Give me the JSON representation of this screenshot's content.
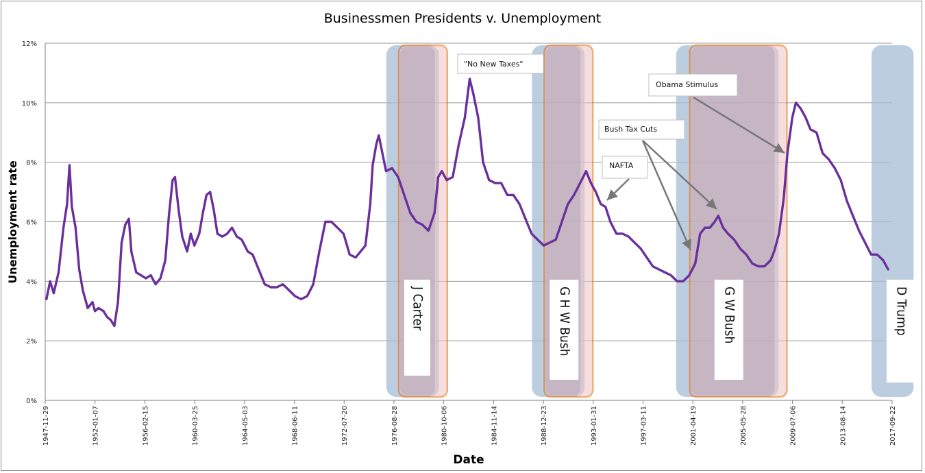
{
  "chart_data": {
    "type": "line",
    "title": "Businessmen Presidents v. Unemployment",
    "xlabel": "Date",
    "ylabel": "Unemployment rate",
    "ylim": [
      0,
      12
    ],
    "y_ticks": [
      "0%",
      "2%",
      "4%",
      "6%",
      "8%",
      "10%",
      "12%"
    ],
    "x_ticks": [
      "1947-11-29",
      "1952-01-07",
      "1956-02-15",
      "1960-03-25",
      "1964-05-03",
      "1968-06-11",
      "1972-07-20",
      "1976-08-28",
      "1980-10-06",
      "1984-11-14",
      "1988-12-23",
      "1993-01-31",
      "1997-03-11",
      "2001-04-19",
      "2005-05-28",
      "2009-07-06",
      "2013-08-14",
      "2017-09-22"
    ],
    "grid": true,
    "series": [
      {
        "color": "#6a2f9c",
        "points": [
          [
            1948.0,
            3.4
          ],
          [
            1948.3,
            4.0
          ],
          [
            1948.6,
            3.6
          ],
          [
            1949.0,
            4.3
          ],
          [
            1949.4,
            5.8
          ],
          [
            1949.7,
            6.6
          ],
          [
            1949.9,
            7.9
          ],
          [
            1950.1,
            6.5
          ],
          [
            1950.4,
            5.8
          ],
          [
            1950.7,
            4.4
          ],
          [
            1951.0,
            3.7
          ],
          [
            1951.4,
            3.1
          ],
          [
            1951.8,
            3.3
          ],
          [
            1952.0,
            3.0
          ],
          [
            1952.3,
            3.1
          ],
          [
            1952.7,
            3.0
          ],
          [
            1953.0,
            2.8
          ],
          [
            1953.3,
            2.7
          ],
          [
            1953.6,
            2.5
          ],
          [
            1953.9,
            3.3
          ],
          [
            1954.2,
            5.3
          ],
          [
            1954.5,
            5.9
          ],
          [
            1954.8,
            6.1
          ],
          [
            1955.0,
            5.0
          ],
          [
            1955.4,
            4.3
          ],
          [
            1955.8,
            4.2
          ],
          [
            1956.2,
            4.1
          ],
          [
            1956.6,
            4.2
          ],
          [
            1957.0,
            3.9
          ],
          [
            1957.4,
            4.1
          ],
          [
            1957.8,
            4.7
          ],
          [
            1958.1,
            6.2
          ],
          [
            1958.4,
            7.4
          ],
          [
            1958.6,
            7.5
          ],
          [
            1958.9,
            6.4
          ],
          [
            1959.2,
            5.5
          ],
          [
            1959.6,
            5.0
          ],
          [
            1959.9,
            5.6
          ],
          [
            1960.2,
            5.2
          ],
          [
            1960.6,
            5.6
          ],
          [
            1960.9,
            6.3
          ],
          [
            1961.2,
            6.9
          ],
          [
            1961.5,
            7.0
          ],
          [
            1961.8,
            6.4
          ],
          [
            1962.1,
            5.6
          ],
          [
            1962.5,
            5.5
          ],
          [
            1962.9,
            5.6
          ],
          [
            1963.3,
            5.8
          ],
          [
            1963.7,
            5.5
          ],
          [
            1964.1,
            5.4
          ],
          [
            1964.6,
            5.0
          ],
          [
            1965.0,
            4.9
          ],
          [
            1965.5,
            4.4
          ],
          [
            1966.0,
            3.9
          ],
          [
            1966.5,
            3.8
          ],
          [
            1967.0,
            3.8
          ],
          [
            1967.5,
            3.9
          ],
          [
            1968.0,
            3.7
          ],
          [
            1968.5,
            3.5
          ],
          [
            1969.0,
            3.4
          ],
          [
            1969.5,
            3.5
          ],
          [
            1970.0,
            3.9
          ],
          [
            1970.5,
            5.0
          ],
          [
            1971.0,
            6.0
          ],
          [
            1971.5,
            6.0
          ],
          [
            1972.0,
            5.8
          ],
          [
            1972.5,
            5.6
          ],
          [
            1973.0,
            4.9
          ],
          [
            1973.5,
            4.8
          ],
          [
            1973.9,
            5.0
          ],
          [
            1974.3,
            5.2
          ],
          [
            1974.7,
            6.6
          ],
          [
            1974.9,
            7.9
          ],
          [
            1975.2,
            8.6
          ],
          [
            1975.4,
            8.9
          ],
          [
            1975.7,
            8.3
          ],
          [
            1976.0,
            7.7
          ],
          [
            1976.5,
            7.8
          ],
          [
            1977.0,
            7.5
          ],
          [
            1977.5,
            6.9
          ],
          [
            1978.0,
            6.3
          ],
          [
            1978.5,
            6.0
          ],
          [
            1979.0,
            5.9
          ],
          [
            1979.5,
            5.7
          ],
          [
            1980.0,
            6.3
          ],
          [
            1980.3,
            7.5
          ],
          [
            1980.6,
            7.7
          ],
          [
            1981.0,
            7.4
          ],
          [
            1981.5,
            7.5
          ],
          [
            1982.0,
            8.6
          ],
          [
            1982.5,
            9.5
          ],
          [
            1982.9,
            10.8
          ],
          [
            1983.2,
            10.3
          ],
          [
            1983.6,
            9.5
          ],
          [
            1984.0,
            8.0
          ],
          [
            1984.5,
            7.4
          ],
          [
            1985.0,
            7.3
          ],
          [
            1985.5,
            7.3
          ],
          [
            1986.0,
            6.9
          ],
          [
            1986.5,
            6.9
          ],
          [
            1987.0,
            6.6
          ],
          [
            1987.5,
            6.1
          ],
          [
            1988.0,
            5.6
          ],
          [
            1988.5,
            5.4
          ],
          [
            1989.0,
            5.2
          ],
          [
            1989.5,
            5.3
          ],
          [
            1990.0,
            5.4
          ],
          [
            1990.5,
            6.0
          ],
          [
            1991.0,
            6.6
          ],
          [
            1991.5,
            6.9
          ],
          [
            1992.0,
            7.3
          ],
          [
            1992.5,
            7.7
          ],
          [
            1992.9,
            7.3
          ],
          [
            1993.3,
            7.0
          ],
          [
            1993.7,
            6.6
          ],
          [
            1994.1,
            6.5
          ],
          [
            1994.5,
            6.0
          ],
          [
            1995.0,
            5.6
          ],
          [
            1995.5,
            5.6
          ],
          [
            1996.0,
            5.5
          ],
          [
            1996.5,
            5.3
          ],
          [
            1997.0,
            5.1
          ],
          [
            1997.5,
            4.8
          ],
          [
            1998.0,
            4.5
          ],
          [
            1998.5,
            4.4
          ],
          [
            1999.0,
            4.3
          ],
          [
            1999.5,
            4.2
          ],
          [
            2000.0,
            4.0
          ],
          [
            2000.5,
            4.0
          ],
          [
            2001.0,
            4.2
          ],
          [
            2001.5,
            4.6
          ],
          [
            2001.9,
            5.6
          ],
          [
            2002.3,
            5.8
          ],
          [
            2002.7,
            5.8
          ],
          [
            2003.1,
            6.0
          ],
          [
            2003.4,
            6.2
          ],
          [
            2003.8,
            5.8
          ],
          [
            2004.2,
            5.6
          ],
          [
            2004.7,
            5.4
          ],
          [
            2005.2,
            5.1
          ],
          [
            2005.7,
            4.9
          ],
          [
            2006.2,
            4.6
          ],
          [
            2006.7,
            4.5
          ],
          [
            2007.2,
            4.5
          ],
          [
            2007.7,
            4.7
          ],
          [
            2008.0,
            5.0
          ],
          [
            2008.4,
            5.6
          ],
          [
            2008.8,
            6.8
          ],
          [
            2009.1,
            8.3
          ],
          [
            2009.5,
            9.5
          ],
          [
            2009.8,
            10.0
          ],
          [
            2010.2,
            9.8
          ],
          [
            2010.6,
            9.5
          ],
          [
            2011.0,
            9.1
          ],
          [
            2011.5,
            9.0
          ],
          [
            2012.0,
            8.3
          ],
          [
            2012.5,
            8.1
          ],
          [
            2013.0,
            7.8
          ],
          [
            2013.5,
            7.4
          ],
          [
            2014.0,
            6.7
          ],
          [
            2014.5,
            6.2
          ],
          [
            2015.0,
            5.7
          ],
          [
            2015.5,
            5.3
          ],
          [
            2016.0,
            4.9
          ],
          [
            2016.5,
            4.9
          ],
          [
            2017.0,
            4.7
          ],
          [
            2017.4,
            4.4
          ]
        ]
      }
    ],
    "presidents": [
      {
        "name": "J Carter",
        "start": 1977.05,
        "end": 1981.05
      },
      {
        "name": "G H W Bush",
        "start": 1989.05,
        "end": 1993.05
      },
      {
        "name": "G W Bush",
        "start": 2001.05,
        "end": 2009.05
      },
      {
        "name": "D Trump",
        "start": 2017.05,
        "end": 2019.5
      }
    ],
    "annotations": [
      {
        "text": "\"No New Taxes\""
      },
      {
        "text": "Obama Stimulus"
      },
      {
        "text": "Bush Tax Cuts"
      },
      {
        "text": "NAFTA"
      }
    ],
    "colors": {
      "line": "#6a2f9c",
      "blue_band": "#a7bcd6",
      "orange_outline": "#e36c0a",
      "pink_fill": "#f2c4c4",
      "arrow": "#777777"
    }
  }
}
